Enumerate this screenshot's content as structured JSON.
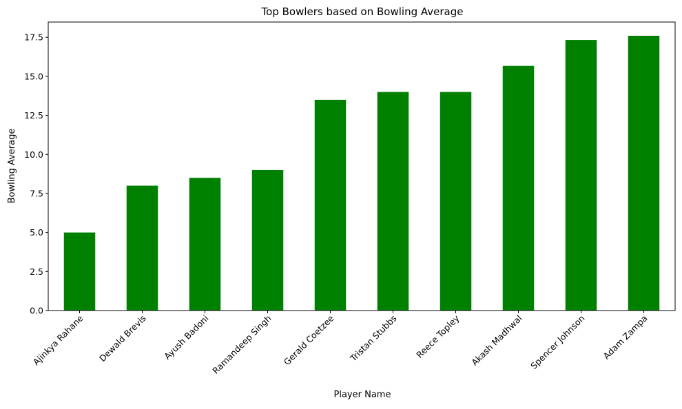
{
  "chart_data": {
    "type": "bar",
    "title": "Top Bowlers based on Bowling Average",
    "xlabel": "Player Name",
    "ylabel": "Bowling Average",
    "categories": [
      "Ajinkya Rahane",
      "Dewald Brevis",
      "Ayush Badoni",
      "Ramandeep Singh",
      "Gerald Coetzee",
      "Tristan Stubbs",
      "Reece Topley",
      "Akash Madhwal",
      "Spencer Johnson",
      "Adam Zampa"
    ],
    "values": [
      5.0,
      8.0,
      8.5,
      9.0,
      13.5,
      14.0,
      14.0,
      15.67,
      17.33,
      17.6
    ],
    "ylim": [
      0,
      18.48
    ],
    "yticks": [
      "0.0",
      "2.5",
      "5.0",
      "7.5",
      "10.0",
      "12.5",
      "15.0",
      "17.5"
    ],
    "bar_color": "#008000",
    "grid": false,
    "legend": "none",
    "x_tick_rotation": 45
  }
}
